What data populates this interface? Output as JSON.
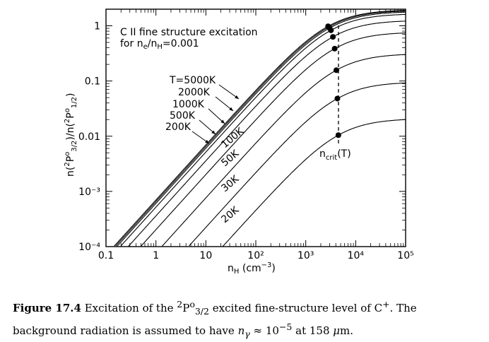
{
  "chart_data": {
    "type": "line",
    "title_line1": "C II fine structure excitation",
    "title_line2_pre": "for n",
    "title_line2_sub1": "e",
    "title_line2_mid": "/n",
    "title_line2_sub2": "H",
    "title_line2_post": "=0.001",
    "xlabel": "n_H (cm^-3)",
    "ylabel": "n(2P°3/2)/n(2P°1/2)",
    "xscale": "log",
    "yscale": "log",
    "xlim": [
      0.1,
      100000
    ],
    "ylim": [
      0.0001,
      2
    ],
    "x_tick_labels": [
      "0.1",
      "1",
      "10",
      "10²",
      "10³",
      "10⁴",
      "10⁵"
    ],
    "y_tick_labels": [
      "10⁻⁴",
      "10⁻³",
      "0.01",
      "0.1",
      "1"
    ],
    "series": [
      {
        "name": "20K",
        "high_density_limit": 0.0209,
        "ncrit": 4500
      },
      {
        "name": "30K",
        "high_density_limit": 0.0962,
        "ncrit": 4300
      },
      {
        "name": "50K",
        "high_density_limit": 0.314,
        "ncrit": 4100
      },
      {
        "name": "100K",
        "high_density_limit": 0.771,
        "ncrit": 3800
      },
      {
        "name": "200K",
        "high_density_limit": 1.26,
        "ncrit": 3500
      },
      {
        "name": "500K",
        "high_density_limit": 1.66,
        "ncrit": 3200
      },
      {
        "name": "1000K",
        "high_density_limit": 1.82,
        "ncrit": 3000
      },
      {
        "name": "2000K",
        "high_density_limit": 1.9,
        "ncrit": 2900
      },
      {
        "name": "T=5000K",
        "high_density_limit": 1.96,
        "ncrit": 2800
      }
    ],
    "annotation_ncrit": "n",
    "annotation_ncrit_sub": "crit",
    "annotation_ncrit_post": "(T)"
  },
  "caption": {
    "label": "Figure 17.4",
    "text_part1": " Excitation of the ",
    "level_sup": "2",
    "level_main": "P",
    "level_sup2": "o",
    "level_sub": "3/2",
    "text_part2": " excited fine-structure level of C",
    "ion_sup": "+",
    "text_part3": ". The background radiation is assumed to have ",
    "ngamma": "n",
    "ngamma_sub": "γ",
    "text_part4": " ≈ 10",
    "exp": "−5",
    "text_part5": " at 158 ",
    "mu": "μ",
    "text_part6": "m."
  }
}
